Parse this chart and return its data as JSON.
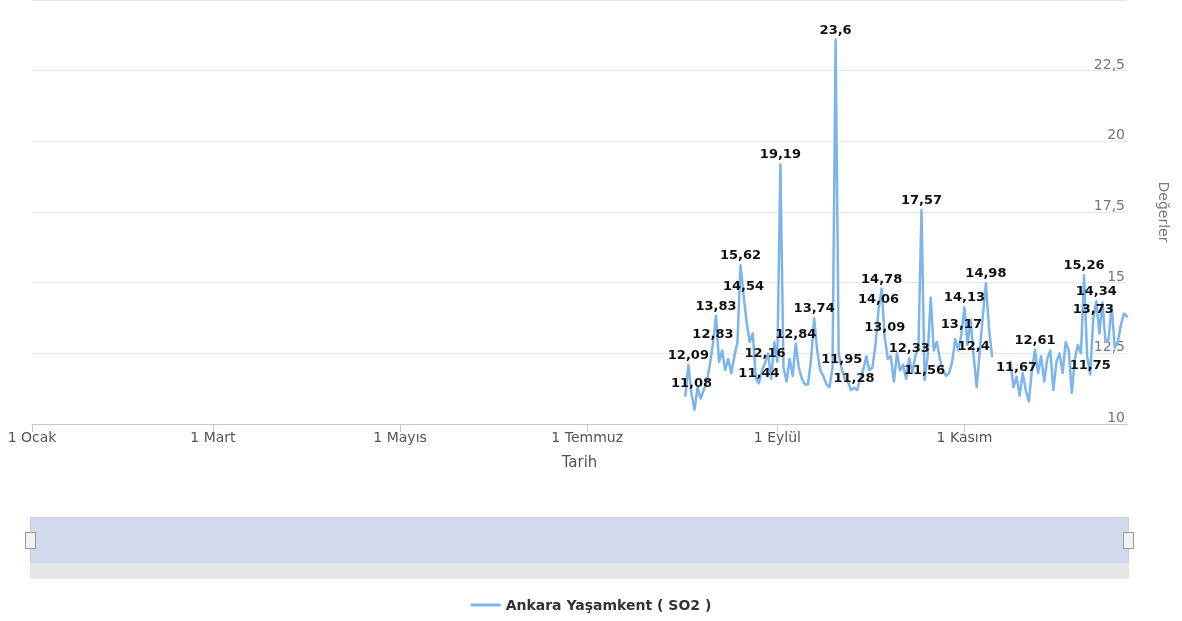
{
  "chart_data": {
    "type": "line",
    "xlabel": "Tarih",
    "ylabel": "Değerler",
    "xlim": [
      "--01-01",
      "--12-24"
    ],
    "xticks": [
      {
        "value": "--01-01",
        "label": "1 Ocak"
      },
      {
        "value": "--03-01",
        "label": "1 Mart"
      },
      {
        "value": "--05-01",
        "label": "1 Mayıs"
      },
      {
        "value": "--07-01",
        "label": "1 Temmuz"
      },
      {
        "value": "--09-01",
        "label": "1 Eylül"
      },
      {
        "value": "--11-01",
        "label": "1 Kasım"
      }
    ],
    "ylim": [
      10,
      25
    ],
    "yticks": [
      10,
      {
        "value": 12.5,
        "label": "12,5"
      },
      15,
      {
        "value": 17.5,
        "label": "17,5"
      },
      20,
      {
        "value": 22.5,
        "label": "22,5"
      },
      {
        "value": 25,
        "label": null
      }
    ],
    "grid": "y",
    "legend": "bottom",
    "marker": "none",
    "line_style": "solid",
    "x": [
      "--08-02",
      "--08-03",
      "--08-04",
      "--08-05",
      "--08-06",
      "--08-07",
      "--08-08",
      "--08-09",
      "--08-10",
      "--08-11",
      "--08-12",
      "--08-13",
      "--08-14",
      "--08-15",
      "--08-16",
      "--08-17",
      "--08-18",
      "--08-19",
      "--08-20",
      "--08-21",
      "--08-22",
      "--08-23",
      "--08-24",
      "--08-25",
      "--08-26",
      "--08-27",
      "--08-28",
      "--08-29",
      "--08-30",
      "--08-31",
      "--09-01",
      "--09-02",
      "--09-03",
      "--09-04",
      "--09-05",
      "--09-06",
      "--09-07",
      "--09-08",
      "--09-09",
      "--09-10",
      "--09-11",
      "--09-12",
      "--09-13",
      "--09-14",
      "--09-15",
      "--09-16",
      "--09-17",
      "--09-18",
      "--09-19",
      "--09-20",
      "--09-21",
      "--09-22",
      "--09-23",
      "--09-24",
      "--09-25",
      "--09-26",
      "--09-27",
      "--09-28",
      "--09-29",
      "--09-30",
      "--10-01",
      "--10-02",
      "--10-03",
      "--10-04",
      "--10-05",
      "--10-06",
      "--10-07",
      "--10-08",
      "--10-09",
      "--10-10",
      "--10-11",
      "--10-12",
      "--10-13",
      "--10-14",
      "--10-15",
      "--10-16",
      "--10-17",
      "--10-18",
      "--10-19",
      "--10-20",
      "--10-21",
      "--10-22",
      "--10-23",
      "--10-24",
      "--10-25",
      "--10-26",
      "--10-27",
      "--10-28",
      "--10-29",
      "--10-30",
      "--10-31",
      "--11-01",
      "--11-02",
      "--11-03",
      "--11-04",
      "--11-05",
      "--11-06",
      "--11-07",
      "--11-08",
      "--11-09",
      "--11-10",
      "--11-11",
      "--11-16",
      "--11-17",
      "--11-18",
      "--11-19",
      "--11-20",
      "--11-21",
      "--11-22",
      "--11-23",
      "--11-24",
      "--11-25",
      "--11-26",
      "--11-27",
      "--11-28",
      "--11-29",
      "--11-30",
      "--12-01",
      "--12-02",
      "--12-03",
      "--12-04",
      "--12-05",
      "--12-06",
      "--12-07",
      "--12-08",
      "--12-09",
      "--12-10",
      "--12-11",
      "--12-12",
      "--12-13",
      "--12-14",
      "--12-15",
      "--12-16",
      "--12-17",
      "--12-18",
      "--12-19",
      "--12-20",
      "--12-21",
      "--12-22",
      "--12-23",
      "--12-24"
    ],
    "series": [
      {
        "name": "Ankara Yaşamkent ( SO2 )",
        "color": "#7cb5ec",
        "values": [
          11.0,
          12.09,
          11.08,
          10.5,
          11.3,
          10.9,
          11.2,
          11.5,
          12.1,
          12.83,
          13.83,
          12.2,
          12.6,
          11.9,
          12.3,
          11.8,
          12.4,
          12.9,
          15.62,
          14.54,
          13.6,
          12.9,
          13.2,
          11.6,
          11.44,
          11.9,
          12.16,
          12.5,
          11.6,
          12.9,
          12.2,
          19.19,
          12.0,
          11.5,
          12.3,
          11.7,
          12.84,
          12.0,
          11.6,
          11.4,
          11.4,
          12.3,
          13.74,
          12.6,
          11.9,
          11.7,
          11.4,
          11.3,
          12.0,
          23.6,
          12.5,
          11.95,
          11.6,
          11.5,
          11.2,
          11.28,
          11.2,
          11.6,
          11.9,
          12.4,
          11.9,
          12.0,
          12.8,
          14.06,
          14.78,
          13.09,
          12.3,
          12.4,
          11.5,
          12.5,
          11.9,
          12.1,
          11.6,
          12.33,
          11.8,
          12.4,
          12.7,
          17.57,
          11.56,
          12.4,
          14.47,
          12.6,
          12.9,
          12.3,
          11.9,
          11.7,
          11.8,
          12.2,
          13.0,
          12.6,
          13.17,
          14.13,
          12.8,
          13.7,
          12.4,
          11.3,
          12.6,
          13.8,
          14.98,
          13.4,
          12.4,
          null,
          12.2,
          11.3,
          11.67,
          11.0,
          11.8,
          11.2,
          10.8,
          11.9,
          12.61,
          11.8,
          12.4,
          11.5,
          12.3,
          12.6,
          11.2,
          12.2,
          12.5,
          11.8,
          12.9,
          12.6,
          11.1,
          12.3,
          12.8,
          12.5,
          15.26,
          12.4,
          11.75,
          13.73,
          14.34,
          13.2,
          14.3,
          12.9,
          13.0,
          14.2,
          12.7,
          12.9,
          13.5,
          13.9,
          13.8
        ],
        "value_labels": [
          null,
          "12,09",
          "11,08",
          null,
          null,
          null,
          null,
          null,
          null,
          "12,83",
          "13,83",
          null,
          null,
          null,
          null,
          null,
          null,
          null,
          "15,62",
          "14,54",
          null,
          null,
          null,
          null,
          "11,44",
          null,
          "12,16",
          null,
          null,
          null,
          null,
          "19,19",
          null,
          null,
          null,
          null,
          "12,84",
          null,
          null,
          null,
          null,
          null,
          "13,74",
          null,
          null,
          null,
          null,
          null,
          null,
          "23,6",
          null,
          "11,95",
          null,
          null,
          null,
          "11,28",
          null,
          null,
          null,
          null,
          null,
          null,
          null,
          "14,06",
          "14,78",
          "13,09",
          null,
          null,
          null,
          null,
          null,
          null,
          null,
          "12,33",
          null,
          null,
          null,
          "17,57",
          "11,56",
          null,
          null,
          null,
          null,
          null,
          null,
          null,
          null,
          null,
          null,
          null,
          "13,17",
          "14,13",
          null,
          null,
          "12,4",
          null,
          null,
          null,
          "14,98",
          null,
          null,
          null,
          null,
          null,
          "11,67",
          null,
          null,
          null,
          null,
          null,
          "12,61",
          null,
          null,
          null,
          null,
          null,
          null,
          null,
          null,
          null,
          null,
          null,
          null,
          null,
          null,
          null,
          "15,26",
          null,
          "11,75",
          "13,73",
          "14,34",
          null,
          null,
          null,
          null,
          null,
          null,
          null,
          null,
          null,
          null
        ]
      }
    ]
  }
}
